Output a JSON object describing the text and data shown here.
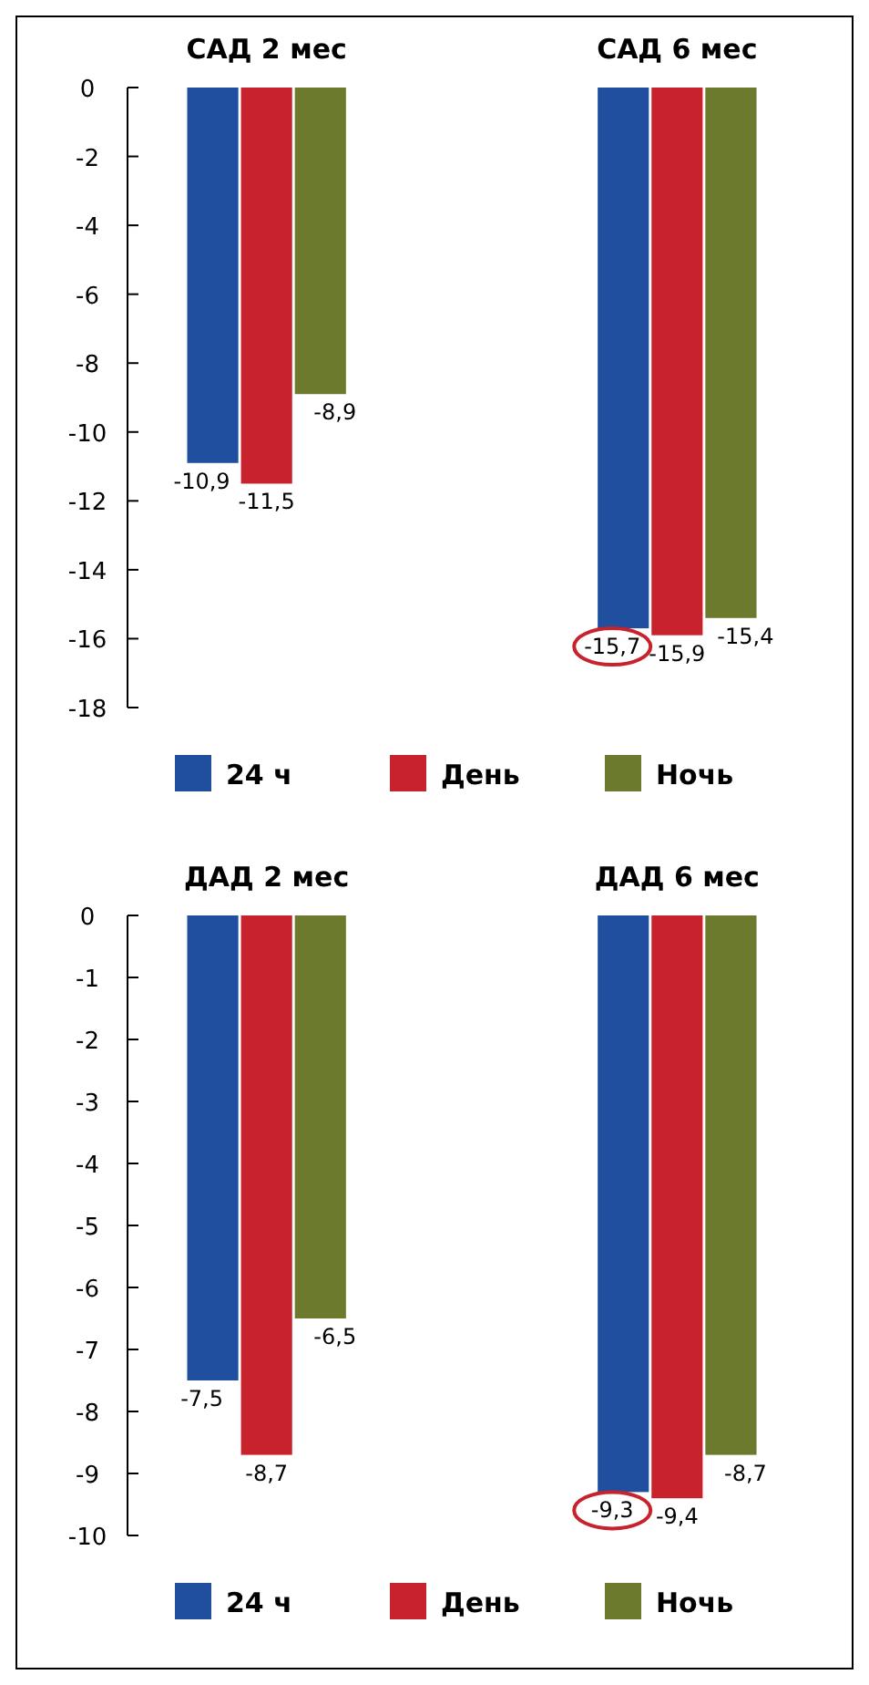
{
  "chart_data": [
    {
      "type": "bar",
      "categories": [
        "САД 2 мес",
        "САД 6 мес"
      ],
      "series": [
        {
          "name": "24 ч",
          "color": "#1f4f9e",
          "values": [
            -10.9,
            -15.7
          ],
          "value_labels": [
            "-10,9",
            "-15,7"
          ]
        },
        {
          "name": "День",
          "color": "#c8232c",
          "values": [
            -11.5,
            -15.9
          ],
          "value_labels": [
            "-11,5",
            "-15,9"
          ]
        },
        {
          "name": "Ночь",
          "color": "#6b7a2c",
          "values": [
            -8.9,
            -15.4
          ],
          "value_labels": [
            "-8,9",
            "-15,4"
          ]
        }
      ],
      "ylim": [
        -18,
        0
      ],
      "yticks": [
        0,
        -2,
        -4,
        -6,
        -8,
        -10,
        -12,
        -14,
        -16,
        -18
      ],
      "legend": "bottom",
      "grid": false
    },
    {
      "type": "bar",
      "categories": [
        "ДАД 2 мес",
        "ДАД 6 мес"
      ],
      "series": [
        {
          "name": "24 ч",
          "color": "#1f4f9e",
          "values": [
            -7.5,
            -9.3
          ],
          "value_labels": [
            "-7,5",
            "-9,3"
          ]
        },
        {
          "name": "День",
          "color": "#c8232c",
          "values": [
            -8.7,
            -9.4
          ],
          "value_labels": [
            "-8,7",
            "-9,4"
          ]
        },
        {
          "name": "Ночь",
          "color": "#6b7a2c",
          "values": [
            -6.5,
            -8.7
          ],
          "value_labels": [
            "-6,5",
            "-8,7"
          ]
        }
      ],
      "ylim": [
        -10,
        0
      ],
      "yticks": [
        0,
        -1,
        -2,
        -3,
        -4,
        -5,
        -6,
        -7,
        -8,
        -9,
        -10
      ],
      "legend": "bottom",
      "grid": false
    }
  ]
}
